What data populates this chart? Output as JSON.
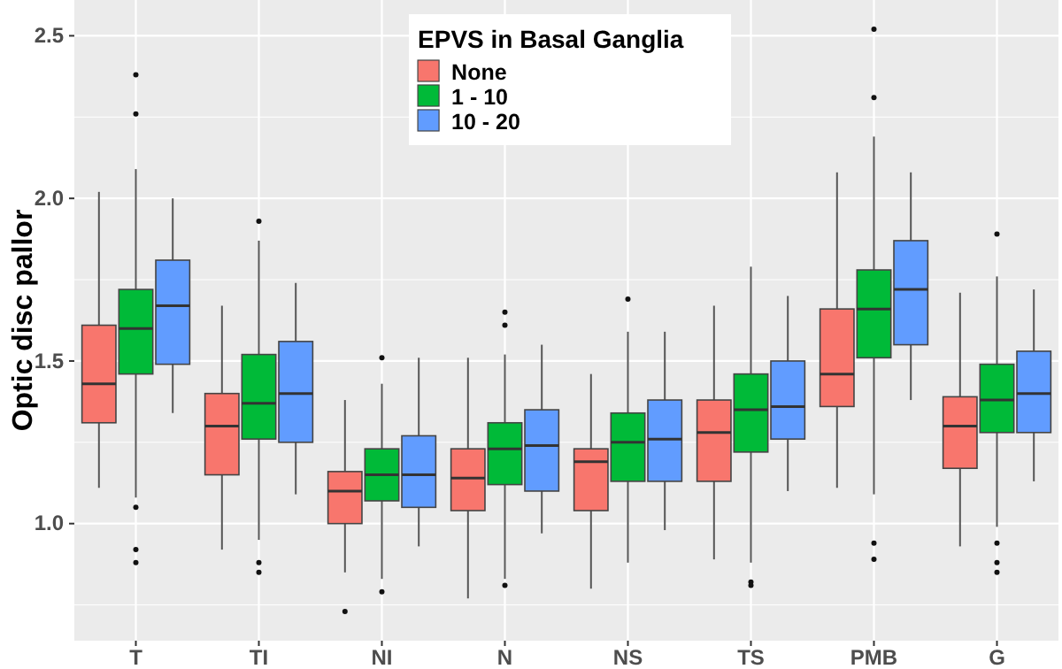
{
  "chart_data": {
    "type": "box",
    "ylabel": "Optic disc pallor",
    "legend_title": "EPVS in Basal Ganglia",
    "legend": "top",
    "grid": true,
    "categories": [
      "T",
      "TI",
      "NI",
      "N",
      "NS",
      "TS",
      "PMB",
      "G"
    ],
    "ylim": [
      0.64,
      2.61
    ],
    "yticks": [
      {
        "value": 1,
        "label": "1.0"
      },
      {
        "value": 1.5,
        "label": "1.5"
      },
      {
        "value": 2,
        "label": "2.0"
      },
      {
        "value": 2.5,
        "label": "2.5"
      }
    ],
    "series": [
      {
        "name": "None",
        "color": "#f8766d",
        "boxes": [
          {
            "low": 1.11,
            "q1": 1.31,
            "median": 1.43,
            "q3": 1.61,
            "high": 2.02
          },
          {
            "low": 0.92,
            "q1": 1.15,
            "median": 1.3,
            "q3": 1.4,
            "high": 1.67
          },
          {
            "low": 0.85,
            "q1": 1.0,
            "median": 1.1,
            "q3": 1.16,
            "high": 1.38,
            "outliers": [
              0.73
            ]
          },
          {
            "low": 0.77,
            "q1": 1.04,
            "median": 1.14,
            "q3": 1.23,
            "high": 1.51
          },
          {
            "low": 0.8,
            "q1": 1.04,
            "median": 1.19,
            "q3": 1.23,
            "high": 1.46
          },
          {
            "low": 0.89,
            "q1": 1.13,
            "median": 1.28,
            "q3": 1.38,
            "high": 1.67
          },
          {
            "low": 1.11,
            "q1": 1.36,
            "median": 1.46,
            "q3": 1.66,
            "high": 2.08
          },
          {
            "low": 0.93,
            "q1": 1.17,
            "median": 1.3,
            "q3": 1.39,
            "high": 1.71
          }
        ]
      },
      {
        "name": "1 - 10",
        "color": "#00ba38",
        "boxes": [
          {
            "low": 1.08,
            "q1": 1.46,
            "median": 1.6,
            "q3": 1.72,
            "high": 2.09,
            "outliers": [
              2.38,
              2.26,
              1.05,
              0.92,
              0.88
            ]
          },
          {
            "low": 0.95,
            "q1": 1.26,
            "median": 1.37,
            "q3": 1.52,
            "high": 1.87,
            "outliers": [
              1.93,
              0.88,
              0.85
            ]
          },
          {
            "low": 0.83,
            "q1": 1.07,
            "median": 1.15,
            "q3": 1.23,
            "high": 1.43,
            "outliers": [
              1.51,
              0.79
            ]
          },
          {
            "low": 0.83,
            "q1": 1.12,
            "median": 1.23,
            "q3": 1.31,
            "high": 1.52,
            "outliers": [
              1.65,
              1.61,
              0.81
            ]
          },
          {
            "low": 0.88,
            "q1": 1.13,
            "median": 1.25,
            "q3": 1.34,
            "high": 1.59,
            "outliers": [
              1.69
            ]
          },
          {
            "low": 0.88,
            "q1": 1.22,
            "median": 1.35,
            "q3": 1.46,
            "high": 1.79,
            "outliers": [
              0.82,
              0.81
            ]
          },
          {
            "low": 1.09,
            "q1": 1.51,
            "median": 1.66,
            "q3": 1.78,
            "high": 2.19,
            "outliers": [
              2.52,
              2.31,
              0.94,
              0.89
            ]
          },
          {
            "low": 0.99,
            "q1": 1.28,
            "median": 1.38,
            "q3": 1.49,
            "high": 1.76,
            "outliers": [
              1.89,
              0.94,
              0.88,
              0.85
            ]
          }
        ]
      },
      {
        "name": "10 - 20",
        "color": "#619cff",
        "boxes": [
          {
            "low": 1.34,
            "q1": 1.49,
            "median": 1.67,
            "q3": 1.81,
            "high": 2.0
          },
          {
            "low": 1.09,
            "q1": 1.25,
            "median": 1.4,
            "q3": 1.56,
            "high": 1.74
          },
          {
            "low": 0.93,
            "q1": 1.05,
            "median": 1.15,
            "q3": 1.27,
            "high": 1.51
          },
          {
            "low": 0.97,
            "q1": 1.1,
            "median": 1.24,
            "q3": 1.35,
            "high": 1.55
          },
          {
            "low": 0.98,
            "q1": 1.13,
            "median": 1.26,
            "q3": 1.38,
            "high": 1.59
          },
          {
            "low": 1.1,
            "q1": 1.26,
            "median": 1.36,
            "q3": 1.5,
            "high": 1.7
          },
          {
            "low": 1.38,
            "q1": 1.55,
            "median": 1.72,
            "q3": 1.87,
            "high": 2.08
          },
          {
            "low": 1.13,
            "q1": 1.28,
            "median": 1.4,
            "q3": 1.53,
            "high": 1.72
          }
        ]
      }
    ]
  }
}
